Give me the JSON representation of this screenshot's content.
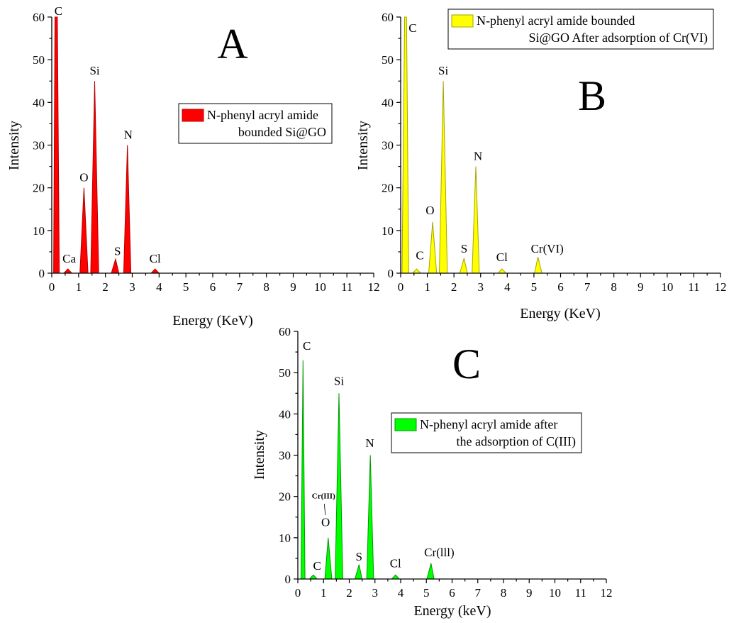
{
  "chart_data": [
    {
      "type": "area",
      "panel_letter": "A",
      "xlabel": "Energy (KeV)",
      "ylabel": "Intensity",
      "xlim": [
        0,
        12
      ],
      "ylim": [
        0,
        60
      ],
      "xticks": [
        "0",
        "1",
        "2",
        "3",
        "4",
        "5",
        "6",
        "7",
        "8",
        "9",
        "10",
        "11",
        "12"
      ],
      "yticks": [
        "0",
        "10",
        "20",
        "30",
        "40",
        "50",
        "60"
      ],
      "fill_color": "#ff0000",
      "stroke_color": "#b30000",
      "legend": [
        "N-phenyl acryl amide",
        "bounded Si@GO"
      ],
      "series": [
        {
          "points": [
            [
              0,
              0
            ],
            [
              0.07,
              0
            ],
            [
              0.12,
              60
            ],
            [
              0.21,
              60
            ],
            [
              0.28,
              0
            ],
            [
              0.45,
              0
            ],
            [
              0.6,
              1
            ],
            [
              0.75,
              0
            ],
            [
              1.05,
              0
            ],
            [
              1.2,
              20
            ],
            [
              1.35,
              0
            ],
            [
              1.45,
              0
            ],
            [
              1.6,
              45
            ],
            [
              1.75,
              0
            ],
            [
              2.22,
              0
            ],
            [
              2.38,
              3.3
            ],
            [
              2.5,
              0
            ],
            [
              2.68,
              0
            ],
            [
              2.82,
              30
            ],
            [
              2.95,
              0
            ],
            [
              3.7,
              0
            ],
            [
              3.85,
              1
            ],
            [
              4.0,
              0
            ],
            [
              11,
              0
            ]
          ]
        }
      ],
      "peaks": [
        {
          "label": "C",
          "x": 0.25,
          "y": 60.5
        },
        {
          "label": "Ca",
          "x": 0.65,
          "y": 2.5
        },
        {
          "label": "O",
          "x": 1.2,
          "y": 21.5
        },
        {
          "label": "Si",
          "x": 1.6,
          "y": 46.5
        },
        {
          "label": "S",
          "x": 2.45,
          "y": 4.2
        },
        {
          "label": "N",
          "x": 2.85,
          "y": 31.5
        },
        {
          "label": "Cl",
          "x": 3.85,
          "y": 2.5
        }
      ]
    },
    {
      "type": "area",
      "panel_letter": "B",
      "xlabel": "Energy (KeV)",
      "ylabel": "Intensity",
      "xlim": [
        0,
        12
      ],
      "ylim": [
        0,
        60
      ],
      "xticks": [
        "0",
        "1",
        "2",
        "3",
        "4",
        "5",
        "6",
        "7",
        "8",
        "9",
        "10",
        "11",
        "12"
      ],
      "yticks": [
        "0",
        "10",
        "20",
        "30",
        "40",
        "50",
        "60"
      ],
      "fill_color": "#ffff00",
      "stroke_color": "#a6a600",
      "legend": [
        "N-phenyl acryl amide bounded",
        "Si@GO After adsorption of Cr(VI)"
      ],
      "series": [
        {
          "points": [
            [
              0,
              0
            ],
            [
              0.05,
              0
            ],
            [
              0.15,
              60
            ],
            [
              0.22,
              60
            ],
            [
              0.3,
              0
            ],
            [
              0.45,
              0
            ],
            [
              0.6,
              1
            ],
            [
              0.75,
              0
            ],
            [
              1.05,
              0
            ],
            [
              1.2,
              12
            ],
            [
              1.35,
              0
            ],
            [
              1.45,
              0
            ],
            [
              1.6,
              45
            ],
            [
              1.75,
              0
            ],
            [
              2.22,
              0
            ],
            [
              2.38,
              3.5
            ],
            [
              2.5,
              0
            ],
            [
              2.68,
              0
            ],
            [
              2.82,
              25
            ],
            [
              2.95,
              0
            ],
            [
              3.65,
              0
            ],
            [
              3.8,
              1
            ],
            [
              3.95,
              0
            ],
            [
              5.02,
              0
            ],
            [
              5.15,
              3.8
            ],
            [
              5.3,
              0
            ],
            [
              11,
              0
            ]
          ]
        }
      ],
      "peaks": [
        {
          "label": "C",
          "x": 0.45,
          "y": 56.5
        },
        {
          "label": "C",
          "x": 0.72,
          "y": 3.2
        },
        {
          "label": "O",
          "x": 1.1,
          "y": 13.8
        },
        {
          "label": "Si",
          "x": 1.6,
          "y": 46.5
        },
        {
          "label": "S",
          "x": 2.38,
          "y": 4.8
        },
        {
          "label": "N",
          "x": 2.9,
          "y": 26.5
        },
        {
          "label": "Cl",
          "x": 3.8,
          "y": 2.8
        },
        {
          "label": "Cr(VI)",
          "x": 5.5,
          "y": 4.8
        }
      ]
    },
    {
      "type": "area",
      "panel_letter": "C",
      "xlabel": "Energy (keV)",
      "ylabel": "Intensity",
      "xlim": [
        0,
        12
      ],
      "ylim": [
        0,
        60
      ],
      "xticks": [
        "0",
        "1",
        "2",
        "3",
        "4",
        "5",
        "6",
        "7",
        "8",
        "9",
        "10",
        "11",
        "12"
      ],
      "yticks": [
        "0",
        "10",
        "20",
        "30",
        "40",
        "50",
        "60"
      ],
      "fill_color": "#00ff00",
      "stroke_color": "#009900",
      "legend": [
        "N-phenyl acryl amide after",
        "the adsorption of C(III)"
      ],
      "series": [
        {
          "points": [
            [
              0,
              0
            ],
            [
              0.12,
              0
            ],
            [
              0.2,
              53
            ],
            [
              0.28,
              0
            ],
            [
              0.45,
              0
            ],
            [
              0.6,
              1
            ],
            [
              0.75,
              0
            ],
            [
              1.05,
              0
            ],
            [
              1.18,
              10
            ],
            [
              1.32,
              0
            ],
            [
              1.45,
              0
            ],
            [
              1.6,
              45
            ],
            [
              1.75,
              0
            ],
            [
              2.22,
              0
            ],
            [
              2.38,
              3.5
            ],
            [
              2.5,
              0
            ],
            [
              2.68,
              0
            ],
            [
              2.82,
              30
            ],
            [
              2.95,
              0
            ],
            [
              3.65,
              0
            ],
            [
              3.8,
              1
            ],
            [
              3.95,
              0
            ],
            [
              5.02,
              0
            ],
            [
              5.18,
              3.8
            ],
            [
              5.3,
              0
            ],
            [
              11,
              0
            ]
          ]
        }
      ],
      "peaks": [
        {
          "label": "C",
          "x": 0.35,
          "y": 55.5
        },
        {
          "label": "C",
          "x": 0.75,
          "y": 2.2
        },
        {
          "label": "O",
          "x": 1.08,
          "y": 12.8
        },
        {
          "label": "Si",
          "x": 1.6,
          "y": 47.0
        },
        {
          "label": "S",
          "x": 2.38,
          "y": 4.5
        },
        {
          "label": "N",
          "x": 2.8,
          "y": 32.0
        },
        {
          "label": "Cl",
          "x": 3.8,
          "y": 2.8
        },
        {
          "label": "Cr(lll)",
          "x": 5.5,
          "y": 5.5
        }
      ],
      "annotation": {
        "label": "Cr(III)",
        "x": 1.0,
        "y": 19.5,
        "pointer_x": 1.07,
        "pointer_y": 15.5
      }
    }
  ]
}
